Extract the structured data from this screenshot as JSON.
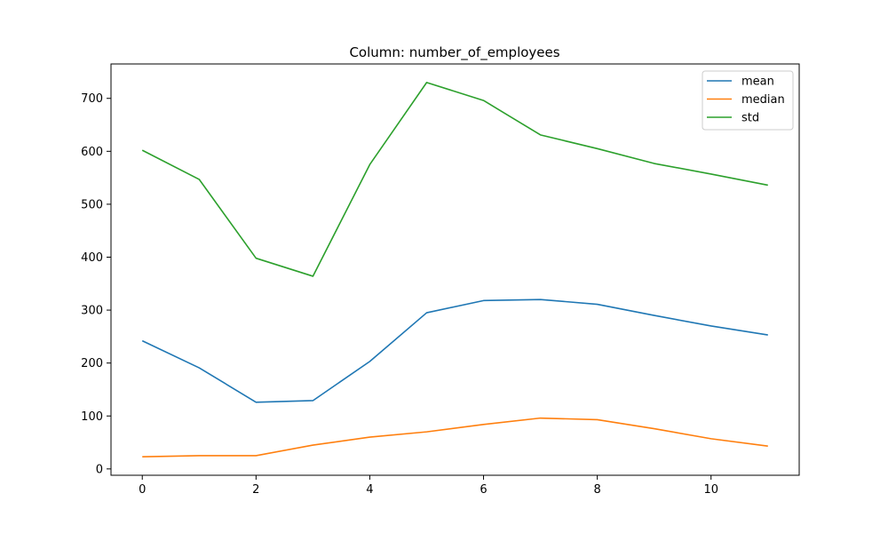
{
  "chart_data": {
    "type": "line",
    "title": "Column: number_of_employees",
    "xlabel": "",
    "ylabel": "",
    "x": [
      0,
      1,
      2,
      3,
      4,
      5,
      6,
      7,
      8,
      9,
      10,
      11
    ],
    "xlim": [
      -0.55,
      11.55
    ],
    "ylim": [
      -12,
      765
    ],
    "xticks": [
      0,
      2,
      4,
      6,
      8,
      10
    ],
    "yticks": [
      0,
      100,
      200,
      300,
      400,
      500,
      600,
      700
    ],
    "grid": false,
    "legend_position": "top-right",
    "series": [
      {
        "name": "mean",
        "color": "#1f77b4",
        "values": [
          242,
          191,
          126,
          129,
          203,
          295,
          318,
          320,
          311,
          290,
          270,
          253
        ]
      },
      {
        "name": "median",
        "color": "#ff7f0e",
        "values": [
          23,
          25,
          25,
          45,
          60,
          70,
          84,
          96,
          93,
          76,
          57,
          43
        ]
      },
      {
        "name": "std",
        "color": "#2ca02c",
        "values": [
          602,
          547,
          398,
          364,
          575,
          730,
          696,
          631,
          605,
          577,
          557,
          536
        ]
      }
    ]
  }
}
